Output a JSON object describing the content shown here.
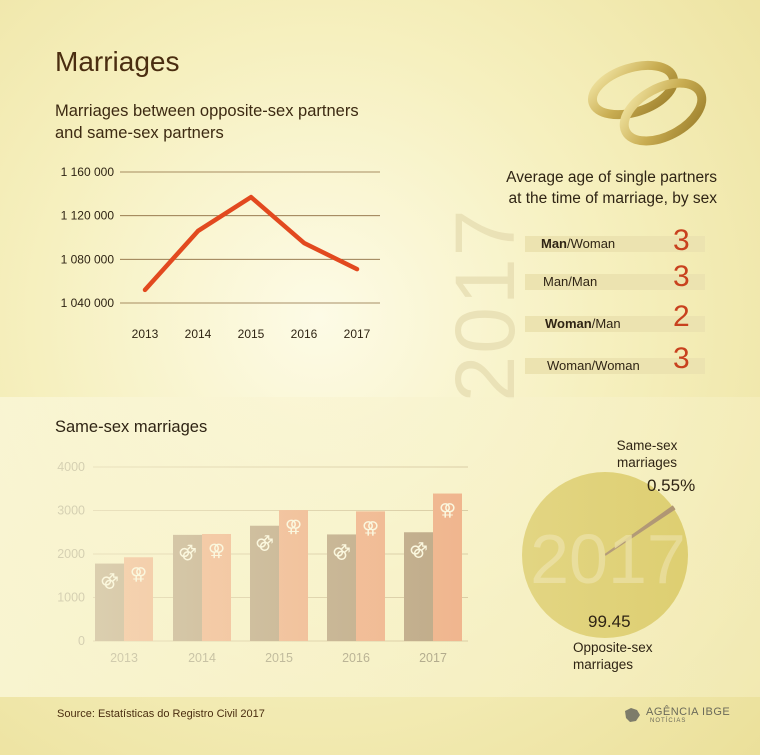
{
  "title": "Marriages",
  "subtitle_line1": "Marriages between opposite-sex partners",
  "subtitle_line2": "and same-sex partners",
  "age_panel": {
    "title_line1": "Average age of single partners",
    "title_line2": "at the time of marriage, by sex",
    "year": "2017",
    "rows": [
      {
        "bold": "Man",
        "rest": "/Woman",
        "value": "3"
      },
      {
        "bold": "",
        "rest": "Man/Man",
        "value": "3"
      },
      {
        "bold": "Woman",
        "rest": "/Man",
        "value": "2"
      },
      {
        "bold": "",
        "rest": "Woman/Woman",
        "value": "3"
      }
    ]
  },
  "same_sex_title": "Same-sex marriages",
  "pie_labels": {
    "top_line1": "Same-sex",
    "top_line2": "marriages",
    "top_value": "0.55%",
    "bottom_value": "99.45",
    "bottom_line1": "Opposite-sex",
    "bottom_line2": "marriages",
    "center_year": "2017"
  },
  "source": "Source: Estatísticas do Registro Civil 2017",
  "logo": {
    "main": "AGÊNCIA IBGE",
    "sub": "NOTÍCIAS"
  },
  "colors": {
    "line": "#e2491f",
    "male_bar": "#5b2a10",
    "female_bar": "#e2491f",
    "pie_main": "#c1a70f",
    "pie_slice": "#5b2a10",
    "age_value": "#c8411e"
  },
  "chart_data": [
    {
      "type": "line",
      "title": "Marriages between opposite-sex partners and same-sex partners",
      "x": [
        "2013",
        "2014",
        "2015",
        "2016",
        "2017"
      ],
      "series": [
        {
          "values": [
            1052000,
            1106000,
            1137000,
            1095000,
            1071000
          ]
        }
      ],
      "ylim": [
        1040000,
        1160000
      ],
      "yticks": [
        "1 040 000",
        "1 080 000",
        "1 120 000",
        "1 160 000"
      ],
      "ytick_values": [
        1040000,
        1080000,
        1120000,
        1160000
      ],
      "grid": true
    },
    {
      "type": "bar",
      "title": "Same-sex marriages",
      "categories": [
        "2013",
        "2014",
        "2015",
        "2016",
        "2017"
      ],
      "series": [
        {
          "values": [
            1780,
            2440,
            2650,
            2450,
            2500
          ]
        },
        {
          "values": [
            1925,
            2460,
            3010,
            2980,
            3390
          ]
        }
      ],
      "ylim": [
        0,
        4000
      ],
      "yticks": [
        "0",
        "1000",
        "2000",
        "3000",
        "4000"
      ],
      "ytick_values": [
        0,
        1000,
        2000,
        3000,
        4000
      ],
      "grid": true
    },
    {
      "type": "pie",
      "labels": [
        "Same-sex marriages",
        "Opposite-sex marriages"
      ],
      "values": [
        0.55,
        99.45
      ]
    }
  ]
}
